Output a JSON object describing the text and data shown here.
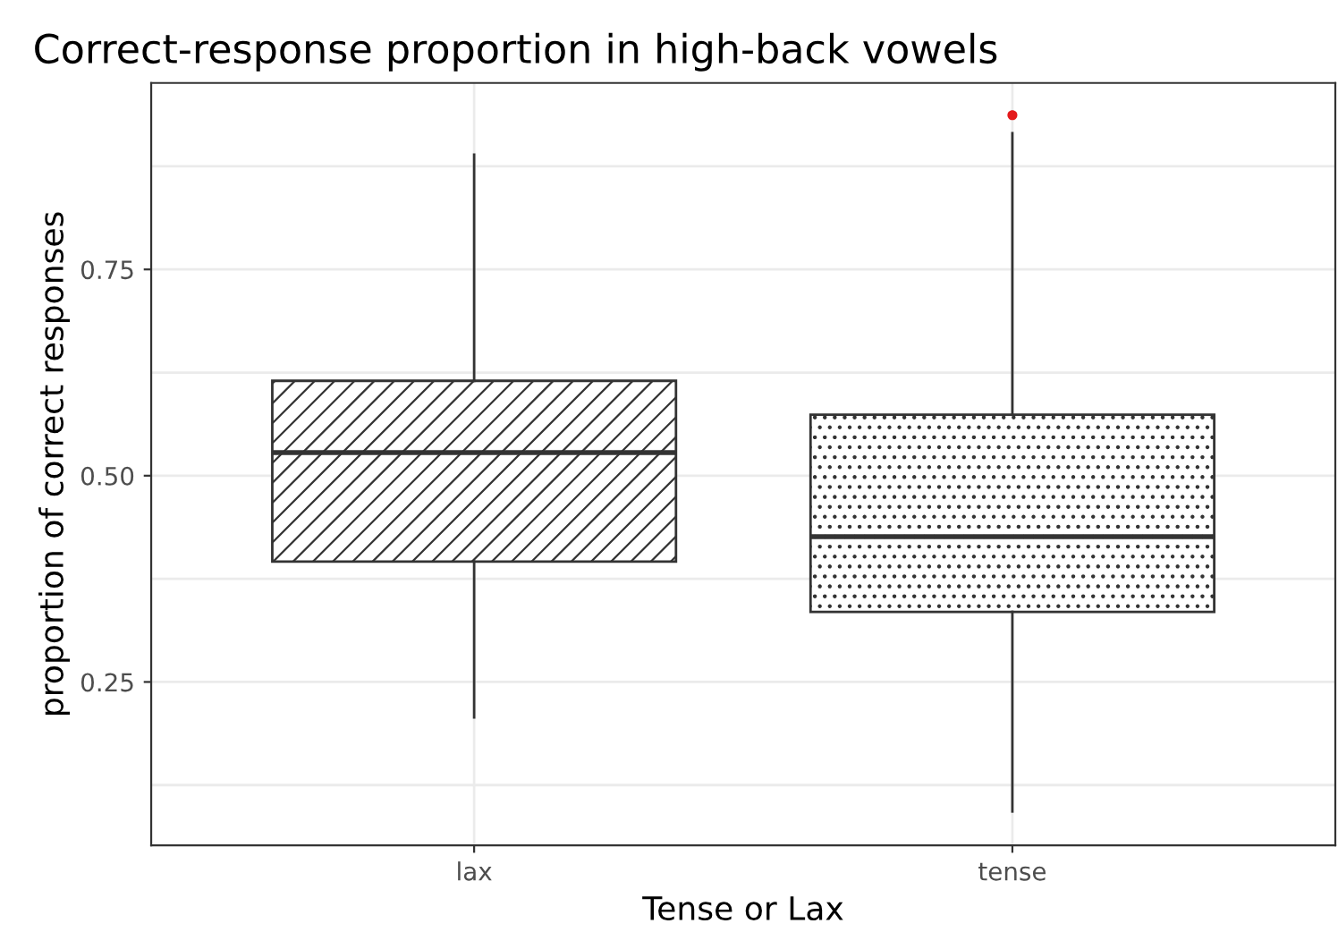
{
  "chart_data": {
    "type": "box",
    "title": "Correct-response proportion in high-back vowels",
    "xlabel": "Tense or Lax",
    "ylabel": "proportion of correct responses",
    "categories": [
      "lax",
      "tense"
    ],
    "boxes": [
      {
        "low": 0.207,
        "q1": 0.396,
        "median": 0.528,
        "q3": 0.615,
        "high": 0.889
      },
      {
        "low": 0.093,
        "q1": 0.335,
        "median": 0.426,
        "q3": 0.574,
        "high": 0.915,
        "outliers": [
          0.937
        ]
      }
    ],
    "ylim": [
      0.052,
      0.976
    ],
    "yticks": [
      {
        "value": 0.125,
        "label": null
      },
      {
        "value": 0.25,
        "label": "0.25"
      },
      {
        "value": 0.375,
        "label": null
      },
      {
        "value": 0.5,
        "label": "0.50"
      },
      {
        "value": 0.625,
        "label": null
      },
      {
        "value": 0.75,
        "label": "0.75"
      },
      {
        "value": 0.875,
        "label": null
      }
    ],
    "grid": true
  }
}
